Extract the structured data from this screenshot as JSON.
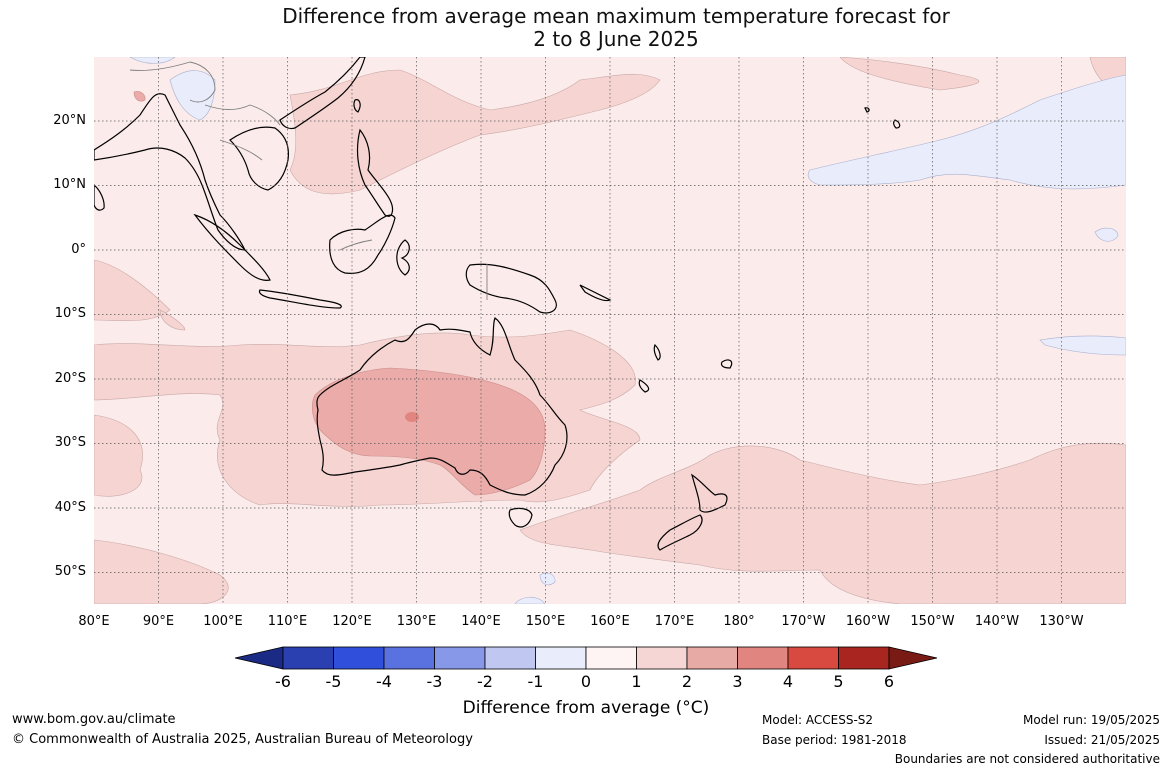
{
  "title": {
    "line1": "Difference from average mean maximum temperature forecast for",
    "line2": "2 to 8 June 2025"
  },
  "map": {
    "lat_labels": [
      "20°N",
      "10°N",
      "0°",
      "10°S",
      "20°S",
      "30°S",
      "40°S",
      "50°S"
    ],
    "lon_labels": [
      "80°E",
      "90°E",
      "100°E",
      "110°E",
      "120°E",
      "130°E",
      "140°E",
      "150°E",
      "160°E",
      "170°E",
      "180°",
      "170°W",
      "160°W",
      "150°W",
      "140°W",
      "130°W"
    ],
    "colors": {
      "ocean_0_1": "#fbebea",
      "anom_1_2": "#f5d4d2",
      "anom_2_3": "#ebaba8",
      "anom_3_4": "#e0857f",
      "anom_neg_1_0": "#e8ecfb",
      "coast": "#000000",
      "border": "#808080",
      "grid": "#555555"
    }
  },
  "colorbar": {
    "ticks": [
      "-6",
      "-5",
      "-4",
      "-3",
      "-2",
      "-1",
      "0",
      "1",
      "2",
      "3",
      "4",
      "5",
      "6"
    ],
    "colors": [
      "#1b2a85",
      "#2a3fb0",
      "#3050dc",
      "#5a72e0",
      "#8898e8",
      "#c0c8f2",
      "#e8ecfb",
      "#fdf4f3",
      "#f6d6d4",
      "#e8aaa5",
      "#e0857f",
      "#d84a3f",
      "#a8261f",
      "#7a1a14"
    ],
    "title": "Difference from average (°C)"
  },
  "footer": {
    "website": "www.bom.gov.au/climate",
    "copyright": "© Commonwealth of Australia 2025, Australian Bureau of Meteorology",
    "model": "Model: ACCESS-S2",
    "base_period": "Base period: 1981-2018",
    "model_run": "Model run: 19/05/2025",
    "issued": "Issued: 21/05/2025",
    "disclaimer": "Boundaries are not considered authoritative"
  }
}
